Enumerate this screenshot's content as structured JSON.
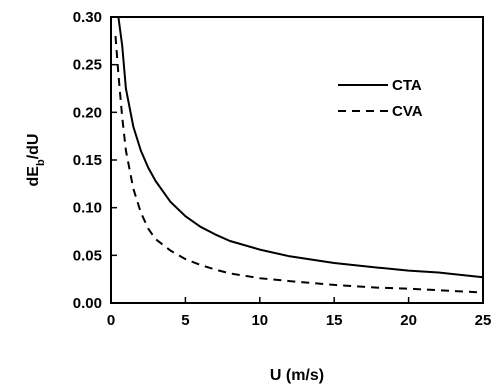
{
  "chart_data": {
    "type": "line",
    "title": "",
    "xlabel": "U (m/s)",
    "ylabel_main": "dE",
    "ylabel_sub": "b",
    "ylabel_tail": "/dU",
    "xlim": [
      0,
      25
    ],
    "ylim": [
      0,
      0.3
    ],
    "x_ticks": [
      0,
      5,
      10,
      15,
      20,
      25
    ],
    "y_ticks": [
      0.0,
      0.05,
      0.1,
      0.15,
      0.2,
      0.25,
      0.3
    ],
    "y_tick_labels": [
      "0.00",
      "0.05",
      "0.10",
      "0.15",
      "0.20",
      "0.25",
      "0.30"
    ],
    "grid": false,
    "legend_position": "top-right",
    "series": [
      {
        "name": "CTA",
        "style": "solid",
        "color": "#000000",
        "x": [
          0.5,
          0.75,
          1,
          1.5,
          2,
          2.5,
          3,
          4,
          5,
          6,
          7,
          8,
          10,
          12,
          15,
          18,
          20,
          22,
          25
        ],
        "y": [
          0.3,
          0.27,
          0.225,
          0.185,
          0.16,
          0.142,
          0.128,
          0.106,
          0.091,
          0.08,
          0.072,
          0.065,
          0.056,
          0.049,
          0.042,
          0.037,
          0.034,
          0.032,
          0.027
        ]
      },
      {
        "name": "CVA",
        "style": "dashed",
        "color": "#000000",
        "x": [
          0.3,
          0.5,
          0.75,
          1,
          1.5,
          2,
          2.5,
          3,
          4,
          5,
          6,
          7,
          8,
          10,
          12,
          15,
          18,
          20,
          25
        ],
        "y": [
          0.28,
          0.24,
          0.195,
          0.16,
          0.12,
          0.095,
          0.078,
          0.067,
          0.055,
          0.046,
          0.04,
          0.035,
          0.031,
          0.026,
          0.023,
          0.019,
          0.016,
          0.015,
          0.011
        ]
      }
    ]
  }
}
